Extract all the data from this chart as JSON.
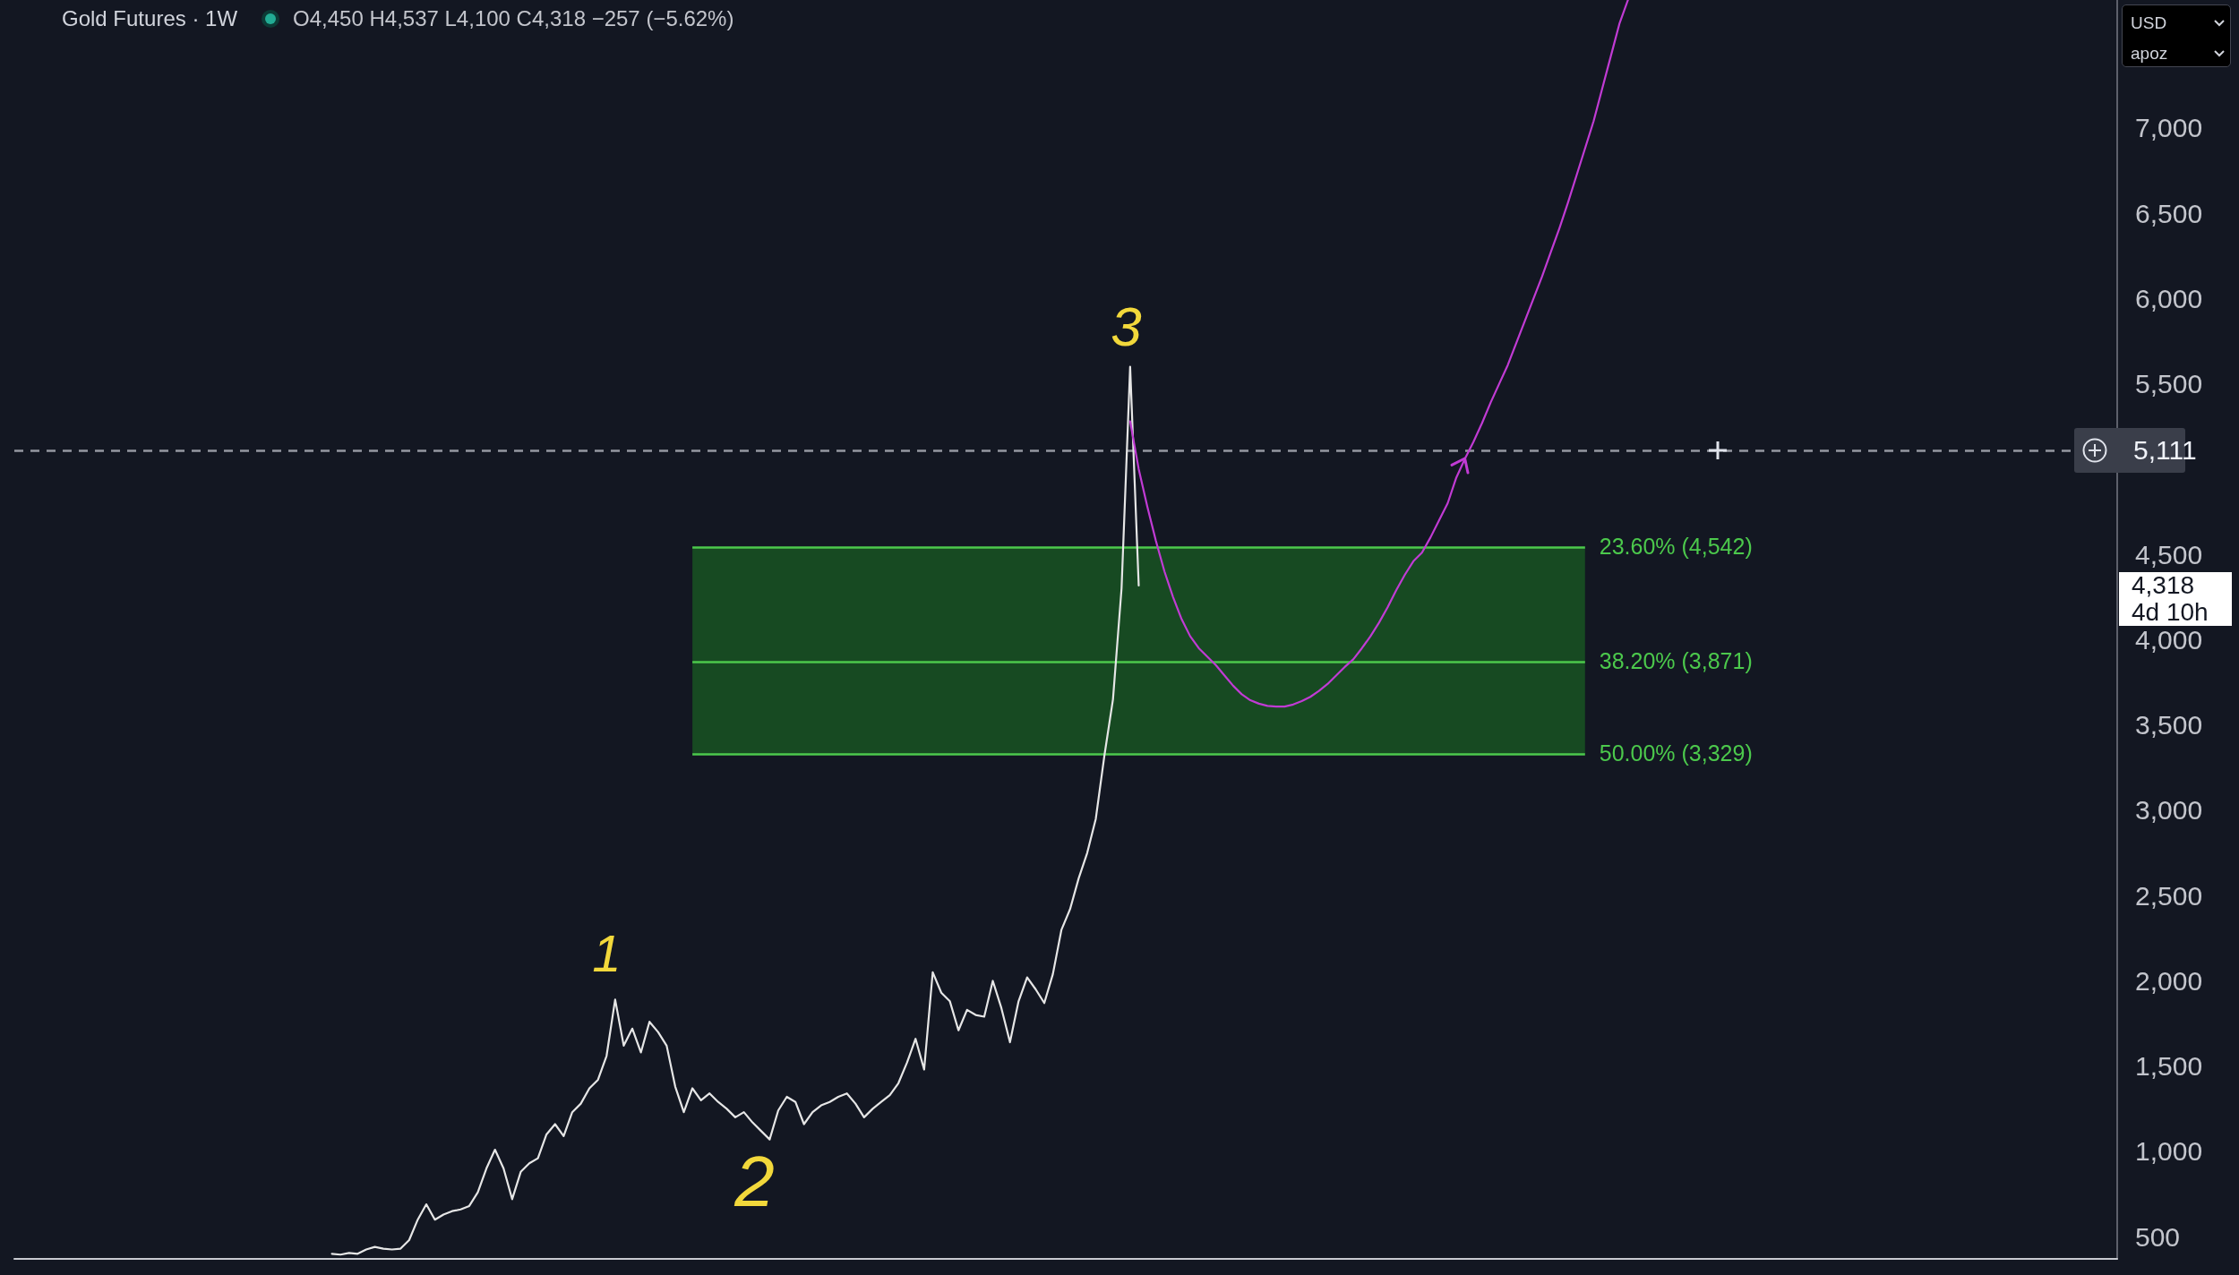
{
  "chart_data": {
    "type": "line",
    "title": "Gold Futures · 1W",
    "subtitle": "O4,450 H4,537 L4,100 C4,318 −257 (−5.62%)",
    "categories": [
      null,
      null,
      null,
      null,
      null,
      null,
      null,
      null,
      null,
      null,
      null,
      null,
      null,
      null,
      null,
      null,
      null,
      null,
      null,
      null,
      null,
      null,
      null,
      null,
      null,
      null,
      null,
      null,
      null,
      null,
      null,
      null,
      null,
      null,
      null,
      null,
      null,
      null,
      null,
      null,
      null,
      null,
      null,
      null,
      null,
      null,
      null,
      null,
      null,
      null,
      null,
      null,
      null,
      null,
      null,
      null,
      null,
      null,
      null,
      null,
      null,
      null,
      null,
      null,
      null,
      null,
      null,
      null,
      null,
      null,
      null,
      null,
      null,
      null,
      null,
      null,
      null,
      null,
      null,
      null,
      null,
      null,
      null,
      null,
      null,
      null,
      null,
      null,
      null,
      null,
      null,
      null,
      null,
      null,
      null,
      null,
      null,
      null,
      null,
      null,
      null,
      null,
      null,
      null,
      null,
      null,
      null,
      null,
      null,
      null,
      null,
      null,
      null,
      null,
      null,
      null,
      null,
      null,
      null,
      null,
      null,
      null,
      null,
      null,
      null,
      null,
      null,
      null,
      null,
      null,
      null,
      null,
      null,
      null,
      null,
      null,
      null,
      null,
      null,
      null,
      null,
      null,
      null,
      null,
      null,
      null,
      null,
      null,
      null,
      null,
      null,
      null,
      null,
      null,
      null,
      null,
      null,
      null,
      null,
      null,
      null,
      null,
      null,
      null,
      null,
      null,
      null,
      null,
      null,
      null,
      null,
      null,
      null,
      null,
      null,
      null,
      null,
      null,
      null,
      null,
      null,
      null,
      null,
      null,
      null,
      null,
      null,
      null,
      null,
      null,
      null,
      null,
      null,
      null,
      null,
      null,
      null,
      null,
      null,
      null,
      null,
      null,
      null,
      null,
      null,
      null,
      null,
      null,
      null,
      null,
      null,
      null,
      null,
      null,
      null,
      null,
      null,
      null,
      null,
      null,
      null,
      null,
      null,
      null,
      null,
      null,
      null,
      null,
      null,
      null,
      null,
      null,
      null,
      null,
      null,
      null,
      null,
      null,
      null,
      null,
      null,
      null,
      null,
      null,
      null,
      null
    ],
    "series": [
      {
        "color": "#e6e6e6",
        "values": [
          null,
          null,
          null,
          null,
          null,
          null,
          null,
          null,
          null,
          null,
          null,
          null,
          null,
          null,
          null,
          null,
          null,
          null,
          null,
          null,
          null,
          null,
          null,
          null,
          null,
          null,
          null,
          null,
          null,
          null,
          null,
          null,
          null,
          null,
          null,
          null,
          null,
          400,
          395,
          405,
          400,
          425,
          440,
          430,
          425,
          430,
          480,
          600,
          690,
          600,
          630,
          650,
          660,
          680,
          760,
          900,
          1010,
          900,
          720,
          880,
          930,
          960,
          1100,
          1160,
          1090,
          1230,
          1280,
          1370,
          1420,
          1560,
          1890,
          1620,
          1720,
          1580,
          1760,
          1700,
          1620,
          1380,
          1230,
          1370,
          1300,
          1340,
          1290,
          1250,
          1200,
          1230,
          1170,
          1120,
          1070,
          1240,
          1320,
          1290,
          1160,
          1230,
          1270,
          1290,
          1320,
          1340,
          1280,
          1200,
          1250,
          1290,
          1330,
          1400,
          1520,
          1660,
          1480,
          2050,
          1930,
          1880,
          1710,
          1830,
          1800,
          1790,
          2000,
          1840,
          1640,
          1880,
          2020,
          1950,
          1870,
          2040,
          2300,
          2420,
          2600,
          2750,
          2950,
          3320,
          3650,
          4300,
          5600,
          4318,
          null,
          null,
          null,
          null,
          null,
          null,
          null,
          null,
          null,
          null,
          null,
          null,
          null,
          null,
          null,
          null,
          null,
          null,
          null,
          null,
          null,
          null,
          null,
          null,
          null,
          null,
          null,
          null,
          null,
          null,
          null,
          null,
          null,
          null,
          null,
          null,
          null,
          null,
          null,
          null,
          null,
          null,
          null,
          null,
          null,
          null,
          null,
          null,
          null,
          null,
          null,
          null,
          null,
          null,
          null,
          null,
          null,
          null,
          null,
          null,
          null,
          null,
          null,
          null,
          null,
          null,
          null,
          null,
          null,
          null,
          null,
          null,
          null,
          null,
          null,
          null,
          null,
          null,
          null,
          null,
          null,
          null,
          null,
          null,
          null,
          null,
          null,
          null,
          null,
          null,
          null,
          null,
          null,
          null,
          null,
          null,
          null,
          null,
          null,
          null,
          null,
          null,
          null,
          null,
          null,
          null,
          null,
          null,
          null,
          null,
          null,
          null,
          null,
          null
        ]
      },
      {
        "color": "#c13bd4",
        "values": [
          null,
          null,
          null,
          null,
          null,
          null,
          null,
          null,
          null,
          null,
          null,
          null,
          null,
          null,
          null,
          null,
          null,
          null,
          null,
          null,
          null,
          null,
          null,
          null,
          null,
          null,
          null,
          null,
          null,
          null,
          null,
          null,
          null,
          null,
          null,
          null,
          null,
          null,
          null,
          null,
          null,
          null,
          null,
          null,
          null,
          null,
          null,
          null,
          null,
          null,
          null,
          null,
          null,
          null,
          null,
          null,
          null,
          null,
          null,
          null,
          null,
          null,
          null,
          null,
          null,
          null,
          null,
          null,
          null,
          null,
          null,
          null,
          null,
          null,
          null,
          null,
          null,
          null,
          null,
          null,
          null,
          null,
          null,
          null,
          null,
          null,
          null,
          null,
          null,
          null,
          null,
          null,
          null,
          null,
          null,
          null,
          null,
          null,
          null,
          null,
          null,
          null,
          null,
          null,
          null,
          null,
          null,
          null,
          null,
          null,
          null,
          null,
          null,
          null,
          null,
          null,
          null,
          null,
          null,
          null,
          null,
          null,
          null,
          null,
          null,
          null,
          null,
          null,
          null,
          null,
          5280,
          5000,
          4780,
          4580,
          4400,
          4250,
          4120,
          4020,
          3950,
          3900,
          3850,
          3790,
          3730,
          3680,
          3645,
          3625,
          3612,
          3608,
          3608,
          3620,
          3640,
          3665,
          3700,
          3740,
          3790,
          3840,
          3885,
          3950,
          4020,
          4100,
          4190,
          4290,
          4380,
          4460,
          4510,
          4600,
          4700,
          4800,
          4950,
          5060,
          5160,
          5270,
          5390,
          5500,
          5610,
          5740,
          5870,
          6000,
          6130,
          6270,
          6410,
          6560,
          6720,
          6880,
          7040,
          7230,
          7420,
          7610,
          7750,
          null,
          null,
          null,
          null,
          null,
          null,
          null,
          null,
          null,
          null,
          null,
          null,
          null,
          null,
          null,
          null,
          null,
          null,
          null,
          null,
          null,
          null,
          null,
          null,
          null,
          null,
          null,
          null,
          null,
          null,
          null,
          null,
          null,
          null,
          null,
          null,
          null,
          null,
          null,
          null,
          null,
          null,
          null,
          null,
          null,
          null,
          null,
          null,
          null,
          null,
          null,
          null,
          null,
          null,
          null,
          null,
          null
        ]
      }
    ],
    "ylim": [
      370,
      7750
    ],
    "yticks": [
      500,
      {
        "value": 1000,
        "label": "1,000"
      },
      {
        "value": 1500,
        "label": "1,500"
      },
      {
        "value": 2000,
        "label": "2,000"
      },
      {
        "value": 2500,
        "label": "2,500"
      },
      {
        "value": 3000,
        "label": "3,000"
      },
      {
        "value": 3500,
        "label": "3,500"
      },
      {
        "value": 4000,
        "label": "4,000"
      },
      {
        "value": 4500,
        "label": "4,500"
      },
      {
        "value": 5500,
        "label": "5,500"
      },
      {
        "value": 6000,
        "label": "6,000"
      },
      {
        "value": 6500,
        "label": "6,500"
      },
      {
        "value": 7000,
        "label": "7,000"
      }
    ],
    "tick_labels": "y",
    "bands": [
      {
        "axis": "y",
        "from": 3329,
        "to": 4542,
        "color": "#174a22"
      }
    ],
    "ref_lines": [
      {
        "axis": "y",
        "value": 5111,
        "label": "5,111",
        "color": "#9598a1",
        "line_style": "dashed"
      },
      {
        "axis": "y",
        "value": 4542,
        "label": "23.60% (4,542)",
        "color": "#4cc94c"
      },
      {
        "axis": "y",
        "value": 3871,
        "label": "38.20% (3,871)",
        "color": "#4cc94c"
      },
      {
        "axis": "y",
        "value": 3329,
        "label": "50.00% (3,329)",
        "color": "#4cc94c"
      }
    ],
    "annotations": [
      "1",
      "2",
      "3",
      "4,318",
      "4d 10h",
      "USD",
      "apoz"
    ]
  }
}
